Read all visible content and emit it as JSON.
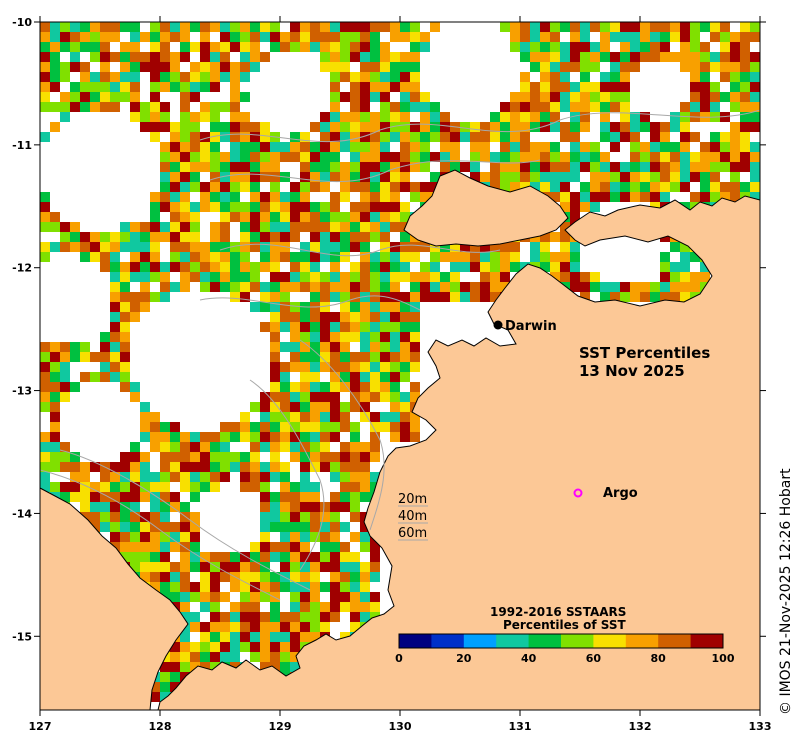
{
  "map": {
    "title_line1": "SST Percentiles",
    "title_line2": "13 Nov 2025",
    "credit": "© IMOS 21-Nov-2025 12:26 Hobart",
    "x_ticks": [
      "127",
      "128",
      "129",
      "130",
      "131",
      "132",
      "133"
    ],
    "y_ticks": [
      "-10",
      "-11",
      "-12",
      "-13",
      "-14",
      "-15"
    ],
    "lon_range": [
      127,
      133
    ],
    "lat_range": [
      -15.6,
      -10
    ],
    "land_color": "#fcc896",
    "places": [
      {
        "name": "Darwin",
        "lon": 130.83,
        "lat": -12.46,
        "marker": "dot"
      },
      {
        "name": "Argo",
        "lon": 131.48,
        "lat": -13.82,
        "marker": "circle-magenta"
      }
    ],
    "depth_legend": [
      "20m",
      "40m",
      "60m"
    ],
    "colorbar": {
      "title_line1": "1992-2016 SSTAARS",
      "title_line2": "Percentiles of SST",
      "tick_labels": [
        "0",
        "20",
        "40",
        "60",
        "80",
        "100"
      ],
      "colors": [
        "#000080",
        "#0030c8",
        "#00a0ff",
        "#10c8a0",
        "#00c040",
        "#80e000",
        "#f8e000",
        "#f8a000",
        "#d06000",
        "#a00000"
      ]
    }
  }
}
